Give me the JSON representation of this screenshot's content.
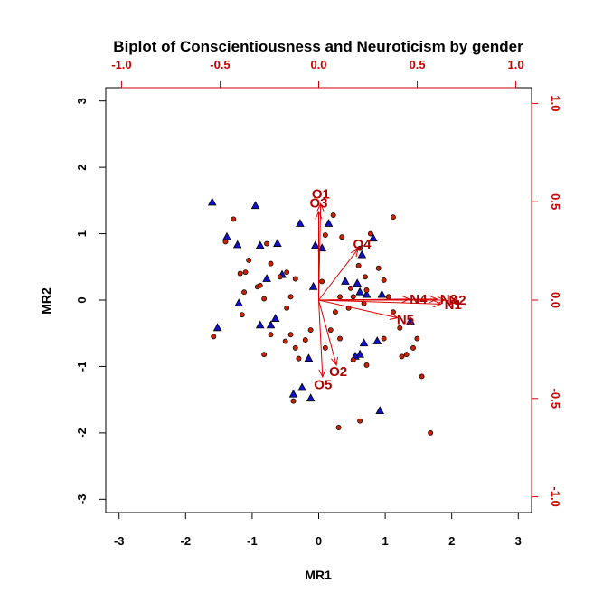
{
  "chart_data": {
    "type": "scatter",
    "title": "Biplot of Conscientiousness and Neuroticism by gender",
    "xlabel": "MR1",
    "ylabel": "MR2",
    "xlim": [
      -3.2,
      3.2
    ],
    "ylim": [
      -3.2,
      3.2
    ],
    "x_ticks": [
      -3,
      -2,
      -1,
      0,
      1,
      2,
      3
    ],
    "y_ticks": [
      -3,
      -2,
      -1,
      0,
      1,
      2,
      3
    ],
    "x_tick_labels": [
      "-3",
      "-2",
      "-1",
      "0",
      "1",
      "2",
      "3"
    ],
    "y_tick_labels": [
      "-3",
      "-2",
      "-1",
      "0",
      "1",
      "2",
      "3"
    ],
    "secondary_axes": {
      "range": [
        -1.08,
        1.08
      ],
      "ticks": [
        -1.0,
        -0.5,
        0.0,
        0.5,
        1.0
      ],
      "top_tick_labels": [
        "-1.0",
        "-0.5",
        "0.0",
        "0.5",
        "1.0"
      ],
      "right_tick_labels": [
        "-1.0",
        "-0.5",
        "0.0",
        "0.5",
        "1.0"
      ],
      "color": "#cc0000"
    },
    "grid": false,
    "colors": {
      "triangle_fill": "#1010cc",
      "circle_fill": "#cc2200",
      "marker_stroke": "#000000",
      "arrow": "#dd0000",
      "label": "#b00000"
    },
    "series": [
      {
        "marker": "triangle",
        "points": [
          [
            -1.6,
            1.47
          ],
          [
            -0.95,
            1.42
          ],
          [
            -1.38,
            0.95
          ],
          [
            -1.22,
            0.83
          ],
          [
            -0.88,
            0.82
          ],
          [
            -0.62,
            0.85
          ],
          [
            -0.28,
            1.15
          ],
          [
            0.15,
            1.15
          ],
          [
            -0.05,
            0.82
          ],
          [
            0.05,
            0.78
          ],
          [
            0.82,
            0.93
          ],
          [
            0.65,
            0.68
          ],
          [
            -0.78,
            0.32
          ],
          [
            -0.55,
            0.38
          ],
          [
            -1.2,
            -0.05
          ],
          [
            -0.88,
            -0.38
          ],
          [
            -0.72,
            -0.38
          ],
          [
            -0.65,
            -0.28
          ],
          [
            -0.08,
            0.2
          ],
          [
            0.4,
            0.28
          ],
          [
            0.58,
            0.25
          ],
          [
            0.62,
            0.12
          ],
          [
            0.72,
            0.08
          ],
          [
            0.95,
            0.08
          ],
          [
            -1.52,
            -0.42
          ],
          [
            -0.15,
            -0.88
          ],
          [
            0.62,
            -0.82
          ],
          [
            0.55,
            -0.85
          ],
          [
            0.68,
            -0.65
          ],
          [
            0.88,
            -0.62
          ],
          [
            1.38,
            -0.32
          ],
          [
            -0.25,
            -1.32
          ],
          [
            -0.38,
            -1.42
          ],
          [
            -0.12,
            -1.48
          ],
          [
            0.92,
            -1.67
          ]
        ]
      },
      {
        "marker": "circle",
        "points": [
          [
            -1.28,
            1.22
          ],
          [
            -1.4,
            0.88
          ],
          [
            -0.78,
            0.85
          ],
          [
            -0.58,
            0.35
          ],
          [
            -1.1,
            0.42
          ],
          [
            -0.72,
            0.55
          ],
          [
            0.1,
            0.98
          ],
          [
            0.22,
            1.28
          ],
          [
            0.35,
            0.95
          ],
          [
            0.62,
            0.78
          ],
          [
            0.78,
            1.0
          ],
          [
            1.12,
            1.25
          ],
          [
            -1.05,
            0.6
          ],
          [
            -0.92,
            0.2
          ],
          [
            -1.12,
            0.12
          ],
          [
            -1.15,
            -0.22
          ],
          [
            -0.88,
            0.22
          ],
          [
            -0.48,
            0.42
          ],
          [
            -0.42,
            0.05
          ],
          [
            -0.48,
            -0.12
          ],
          [
            -1.18,
            0.4
          ],
          [
            0.32,
            0.05
          ],
          [
            0.48,
            0.18
          ],
          [
            0.6,
            0.52
          ],
          [
            0.9,
            0.48
          ],
          [
            0.98,
            0.3
          ],
          [
            0.7,
            0.35
          ],
          [
            0.72,
            0.15
          ],
          [
            0.52,
            0.05
          ],
          [
            0.68,
            -0.05
          ],
          [
            -0.72,
            -0.52
          ],
          [
            -0.42,
            -0.52
          ],
          [
            -0.35,
            -0.72
          ],
          [
            -0.3,
            -0.88
          ],
          [
            -0.5,
            -0.62
          ],
          [
            -0.82,
            -0.82
          ],
          [
            -0.12,
            -0.45
          ],
          [
            0.18,
            -0.45
          ],
          [
            0.32,
            -0.58
          ],
          [
            0.52,
            -0.9
          ],
          [
            0.72,
            -0.98
          ],
          [
            0.98,
            -0.58
          ],
          [
            1.22,
            -0.42
          ],
          [
            1.32,
            -0.82
          ],
          [
            1.48,
            -0.58
          ],
          [
            1.42,
            -0.72
          ],
          [
            1.25,
            -0.85
          ],
          [
            1.55,
            -1.15
          ],
          [
            0.62,
            -1.82
          ],
          [
            0.3,
            -1.92
          ],
          [
            1.68,
            -2.0
          ],
          [
            -0.38,
            -1.52
          ],
          [
            -1.58,
            -0.55
          ],
          [
            -0.82,
            0.02
          ],
          [
            1.12,
            -0.18
          ],
          [
            1.05,
            0.05
          ],
          [
            0.05,
            0.28
          ],
          [
            0.25,
            -0.18
          ],
          [
            0.45,
            -0.12
          ],
          [
            -0.35,
            0.32
          ],
          [
            -0.2,
            -0.6
          ],
          [
            0.1,
            -0.72
          ]
        ]
      }
    ],
    "loadings": [
      {
        "label": "N1",
        "x": 0.62,
        "y": -0.02
      },
      {
        "label": "N2",
        "x": 0.64,
        "y": 0.0
      },
      {
        "label": "N3",
        "x": 0.6,
        "y": 0.005
      },
      {
        "label": "N4",
        "x": 0.46,
        "y": 0.005
      },
      {
        "label": "N5",
        "x": 0.4,
        "y": -0.09
      },
      {
        "label": "O1",
        "x": 0.01,
        "y": 0.49
      },
      {
        "label": "O2",
        "x": 0.09,
        "y": -0.33
      },
      {
        "label": "O3",
        "x": 0.0,
        "y": 0.45
      },
      {
        "label": "O4",
        "x": 0.2,
        "y": 0.26
      },
      {
        "label": "O5",
        "x": 0.02,
        "y": -0.39
      }
    ]
  }
}
